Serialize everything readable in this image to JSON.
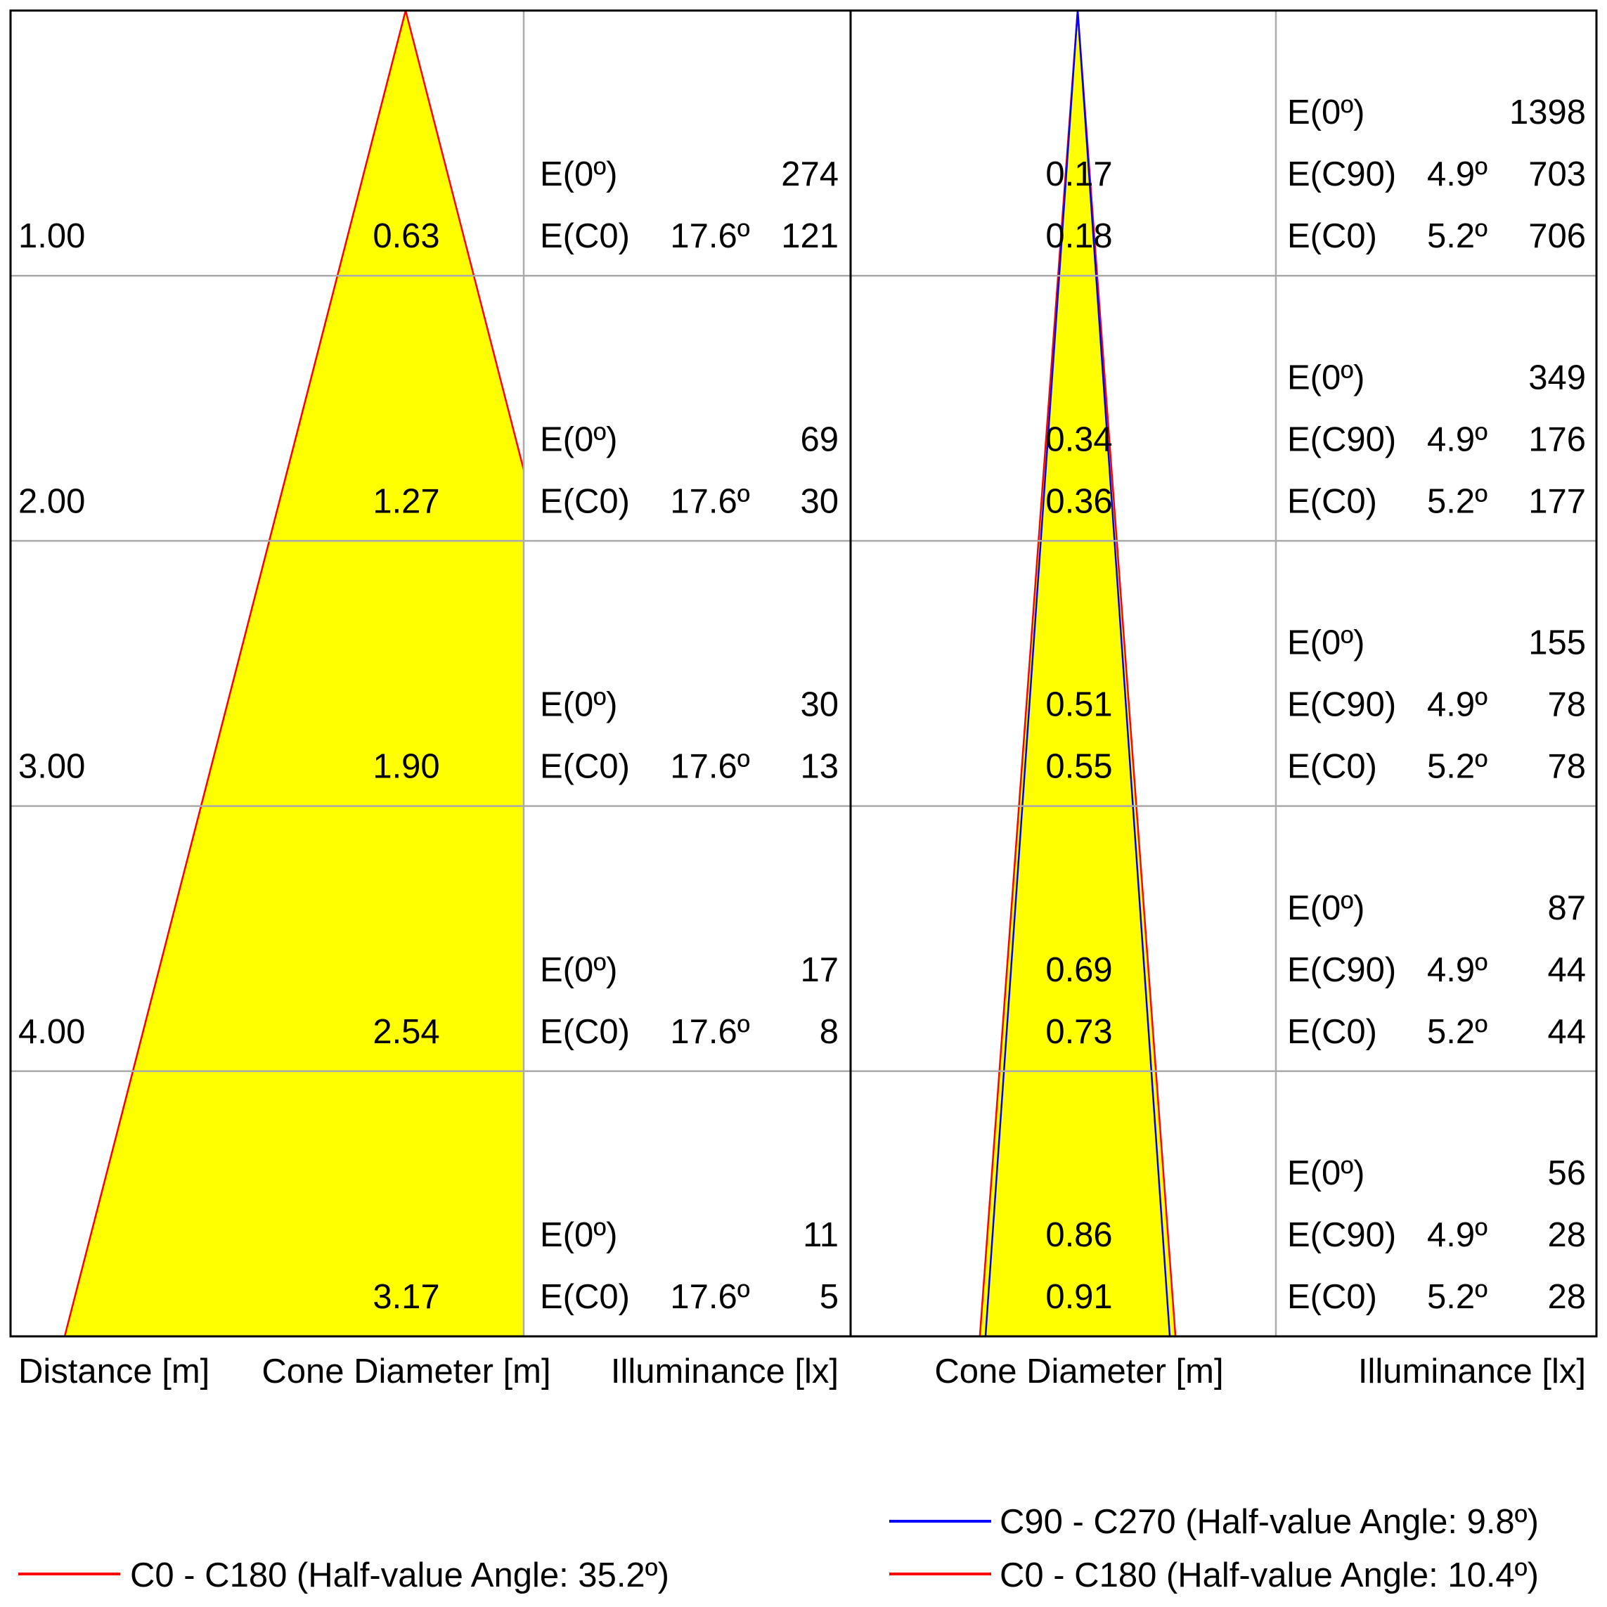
{
  "chart_data": [
    {
      "type": "table",
      "distances": [
        "1.00",
        "2.00",
        "3.00",
        "4.00",
        ""
      ],
      "cone_diameter_c0": [
        "0.63",
        "1.27",
        "1.90",
        "2.54",
        "3.17"
      ],
      "illuminance": {
        "e0": [
          "274",
          "69",
          "30",
          "17",
          "11"
        ],
        "ec0": [
          "121",
          "30",
          "13",
          "8",
          "5"
        ],
        "ec0_angle": "17.6º",
        "label_e0": "E(0º)",
        "label_ec0": "E(C0)"
      },
      "half_value_angle_c0_deg": 35.2,
      "column_labels": {
        "distance": "Distance [m]",
        "cone_diameter": "Cone Diameter [m]",
        "illuminance": "Illuminance [lx]"
      },
      "legend": [
        {
          "label": "C0 - C180 (Half-value Angle: 35.2º)",
          "color": "#ff0000"
        }
      ]
    },
    {
      "type": "table",
      "cone_diameter_c90": [
        "0.17",
        "0.34",
        "0.51",
        "0.69",
        "0.86"
      ],
      "cone_diameter_c0": [
        "0.18",
        "0.36",
        "0.55",
        "0.73",
        "0.91"
      ],
      "illuminance": {
        "e0": [
          "1398",
          "349",
          "155",
          "87",
          "56"
        ],
        "ec90": [
          "703",
          "176",
          "78",
          "44",
          "28"
        ],
        "ec0": [
          "706",
          "177",
          "78",
          "44",
          "28"
        ],
        "ec90_angle": "4.9º",
        "ec0_angle": "5.2º",
        "label_e0": "E(0º)",
        "label_ec90": "E(C90)",
        "label_ec0": "E(C0)"
      },
      "half_value_angle_c90_deg": 9.8,
      "half_value_angle_c0_deg": 10.4,
      "column_labels": {
        "cone_diameter": "Cone Diameter [m]",
        "illuminance": "Illuminance [lx]"
      },
      "legend": [
        {
          "label": "C90 - C270 (Half-value Angle: 9.8º)",
          "color": "#0000ff"
        },
        {
          "label": "C0 - C180 (Half-value Angle: 10.4º)",
          "color": "#ff0000"
        }
      ]
    }
  ],
  "colors": {
    "cone_fill": "#ffff00",
    "c0_line": "#ff0000",
    "c90_line": "#0000ff",
    "frame": "#000000",
    "grid": "#aaaaaa"
  }
}
